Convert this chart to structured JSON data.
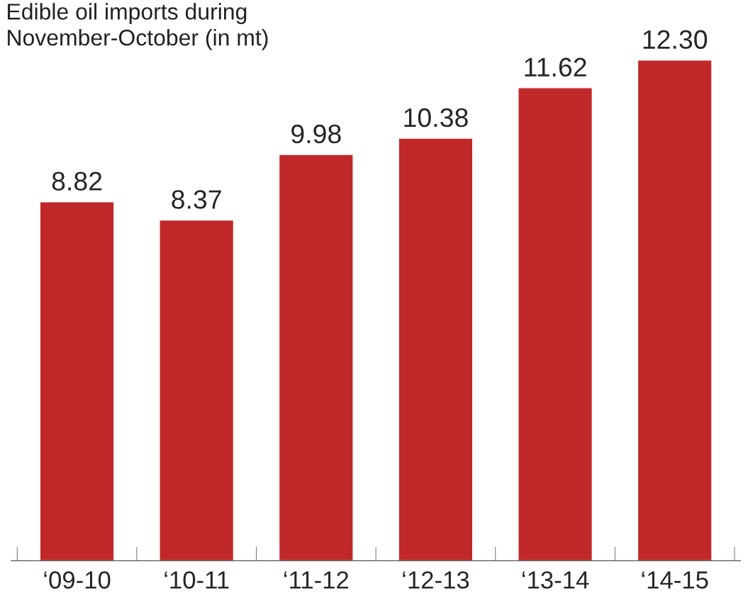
{
  "chart_data": {
    "type": "bar",
    "title": "Edible oil imports during\nNovember-October (in mt)",
    "categories": [
      "‘09-10",
      "‘10-11",
      "‘11-12",
      "‘12-13",
      "‘13-14",
      "‘14-15"
    ],
    "values": [
      8.82,
      8.37,
      9.98,
      10.38,
      11.62,
      12.3
    ],
    "value_labels": [
      "8.82",
      "8.37",
      "9.98",
      "10.38",
      "11.62",
      "12.30"
    ],
    "color": "#c0282a",
    "tick_labels": "x",
    "grid": false,
    "legend": false
  }
}
